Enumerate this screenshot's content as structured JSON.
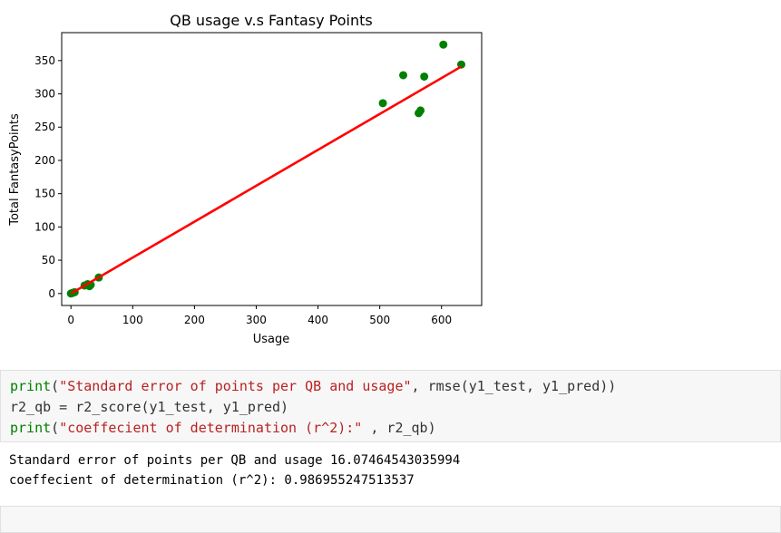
{
  "chart_data": {
    "type": "scatter",
    "title": "QB usage v.s Fantasy Points",
    "xlabel": "Usage",
    "ylabel": "Total FantasyPoints",
    "xlim": [
      -15,
      665
    ],
    "ylim": [
      -18,
      392
    ],
    "xticks": [
      0,
      100,
      200,
      300,
      400,
      500,
      600
    ],
    "yticks": [
      0,
      50,
      100,
      150,
      200,
      250,
      300,
      350
    ],
    "grid": false,
    "series": [
      {
        "kind": "scatter",
        "color": "#008000",
        "x": [
          0,
          3,
          6,
          22,
          27,
          32,
          30,
          45,
          505,
          538,
          572,
          563,
          566,
          603,
          632
        ],
        "y": [
          0,
          1,
          2,
          12,
          14,
          13,
          11,
          24,
          286,
          328,
          326,
          271,
          275,
          374,
          344
        ]
      },
      {
        "kind": "line",
        "color": "#ff0000",
        "x": [
          0,
          632
        ],
        "y": [
          0,
          341
        ]
      }
    ]
  },
  "code_cell": {
    "line1": {
      "kw": "print",
      "open": "(",
      "str": "\"Standard error of points per QB and usage\"",
      "rest": ", rmse(y1_test, y1_pred))"
    },
    "line2": "r2_qb = r2_score(y1_test, y1_pred)",
    "line3": {
      "kw": "print",
      "open": "(",
      "str": "\"coeffecient of determination (r^2):\"",
      "rest": " , r2_qb)"
    }
  },
  "output": {
    "line1": "Standard error of points per QB and usage 16.07464543035994",
    "line2": "coeffecient of determination (r^2): 0.986955247513537"
  }
}
